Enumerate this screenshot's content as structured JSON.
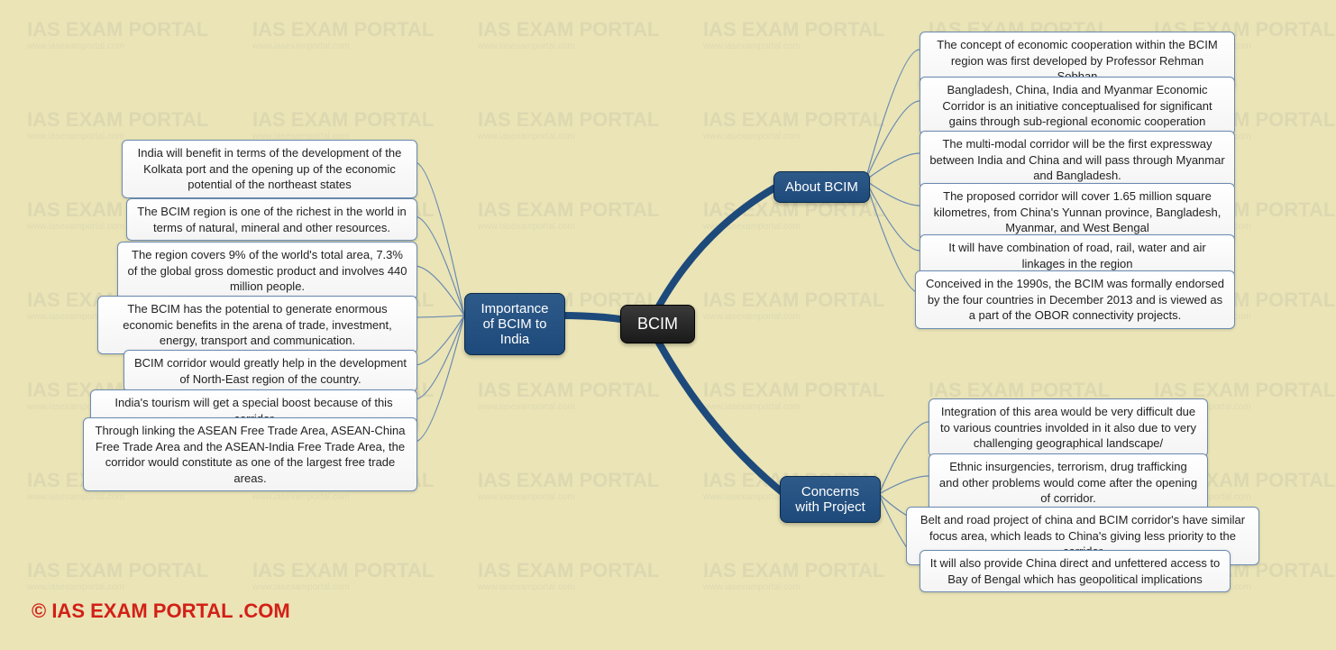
{
  "colors": {
    "background": "#eae4b7",
    "center_fill_top": "#3a3a3a",
    "center_fill_bottom": "#1a1a1a",
    "center_text": "#ffffff",
    "branch_fill_top": "#2e5a8a",
    "branch_fill_bottom": "#1d4a7a",
    "branch_text": "#ffffff",
    "leaf_fill_top": "#ffffff",
    "leaf_fill_bottom": "#f4f4f4",
    "leaf_border": "#6a8ab0",
    "leaf_text": "#222222",
    "connector_thick": "#1d4a7a",
    "connector_thin": "#6a8ab0",
    "copyright": "#d32017",
    "watermark": "rgba(128,128,128,0.12)"
  },
  "center": {
    "label": "BCIM"
  },
  "branches": {
    "about": {
      "label": "About BCIM",
      "leaves": [
        "The concept of economic cooperation within the BCIM region was first developed by Professor Rehman Sobhan",
        "Bangladesh, China, India and Myanmar Economic Corridor is an initiative conceptualised for significant gains through sub-regional economic cooperation",
        "The multi-modal corridor will be the first expressway between India and China and will pass through Myanmar and Bangladesh.",
        "The proposed corridor will cover 1.65 million square kilometres, from China's Yunnan province, Bangladesh, Myanmar, and West Bengal",
        "It will have combination of road, rail, water and air linkages in the region",
        "Conceived in the 1990s, the BCIM was formally endorsed by the four countries in December 2013 and is viewed as a part of the OBOR connectivity projects."
      ]
    },
    "importance": {
      "label": "Importance of BCIM to India",
      "leaves": [
        "India will benefit in terms of the development of the Kolkata port and the opening up of the economic potential of the northeast states",
        "The BCIM region is one of the richest in the world in terms of natural, mineral and other resources.",
        "The region covers 9% of the world's total area, 7.3% of the global gross domestic product and involves 440 million people.",
        "The BCIM has the potential to generate enormous economic benefits in the arena of trade, investment, energy, transport and communication.",
        "BCIM corridor would greatly help in the development of North-East region of the country.",
        "India's tourism will get a special boost because of this corridor",
        "Through linking the ASEAN Free Trade Area, ASEAN-China Free Trade Area and the ASEAN-India Free Trade Area, the corridor would constitute as one of the largest free trade areas."
      ]
    },
    "concerns": {
      "label": "Concerns with Project",
      "leaves": [
        "Integration of this area would be very difficult due to various countries involded in it also due to very challenging geographical landscape/",
        "Ethnic insurgencies, terrorism, drug trafficking and other problems would come after the opening of corridor.",
        "Belt and road project of china and BCIM corridor's have similar focus area, which leads to China's giving less priority to the corridor",
        "It will also provide China direct and unfettered access to Bay of Bengal which has geopolitical implications"
      ]
    }
  },
  "copyright": "© IAS EXAM PORTAL .COM",
  "watermark": {
    "main": "IAS EXAM PORTAL",
    "sub": "www.iasexamportal.com"
  }
}
